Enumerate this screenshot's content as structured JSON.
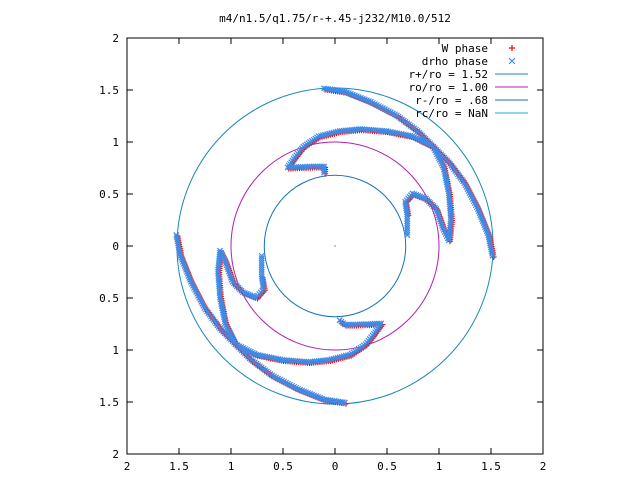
{
  "chart_data": {
    "type": "scatter",
    "title": "m4/n1.5/q1.75/r-+.45-j232/M10.0/512",
    "xlabel": "",
    "ylabel": "",
    "xlim": [
      -2,
      2
    ],
    "ylim": [
      -2,
      2
    ],
    "x_ticks": [
      -2,
      -1.5,
      -1,
      -0.5,
      0,
      0.5,
      1,
      1.5,
      2
    ],
    "y_ticks": [
      -2,
      -1.5,
      -1,
      -0.5,
      0,
      0.5,
      1,
      1.5,
      2
    ],
    "x_tick_labels": [
      "2",
      "1.5",
      "1",
      "0.5",
      "0",
      "0.5",
      "1",
      "1.5",
      "2"
    ],
    "y_tick_labels": [
      "2",
      "1.5",
      "1",
      "0.5",
      "0",
      "0.5",
      "1",
      "1.5",
      "2"
    ],
    "grid": false,
    "legend_position": "top-right",
    "legend": [
      {
        "label": "W phase",
        "symbol": "+",
        "color": "#ff0000"
      },
      {
        "label": "drho phase",
        "symbol": "x",
        "color": "#3d8be8"
      },
      {
        "label": "r+/ro = 1.52",
        "symbol": "line",
        "color": "#1a88b8"
      },
      {
        "label": "ro/ro = 1.00",
        "symbol": "line",
        "color": "#b020b0"
      },
      {
        "label": "r-/ro = .68",
        "symbol": "line",
        "color": "#1a70c0"
      },
      {
        "label": "rc/ro = NaN",
        "symbol": "line",
        "color": "#18a8d8"
      }
    ],
    "circles": [
      {
        "name": "r+/ro = 1.52",
        "r": 1.52,
        "color": "#1a88b8"
      },
      {
        "name": "ro/ro = 1.00",
        "r": 1.0,
        "color": "#b020b0"
      },
      {
        "name": "r-/ro = .68",
        "r": 0.68,
        "color": "#1a70c0"
      }
    ],
    "series": [
      {
        "name": "W phase",
        "marker": "+",
        "color": "#ff0000",
        "arms": [
          [
            [
              -0.1,
              1.51
            ],
            [
              0.1,
              1.48
            ],
            [
              0.35,
              1.38
            ],
            [
              0.6,
              1.25
            ],
            [
              0.8,
              1.1
            ],
            [
              0.95,
              0.95
            ],
            [
              1.05,
              0.75
            ],
            [
              1.1,
              0.5
            ],
            [
              1.12,
              0.25
            ],
            [
              1.1,
              0.05
            ],
            [
              1.05,
              0.15
            ],
            [
              0.98,
              0.35
            ],
            [
              0.88,
              0.45
            ],
            [
              0.75,
              0.5
            ],
            [
              0.68,
              0.42
            ],
            [
              0.7,
              0.3
            ]
          ],
          [
            [
              1.52,
              -0.1
            ],
            [
              1.48,
              0.1
            ],
            [
              1.38,
              0.35
            ],
            [
              1.25,
              0.6
            ],
            [
              1.1,
              0.8
            ],
            [
              0.95,
              0.95
            ],
            [
              0.75,
              1.05
            ],
            [
              0.5,
              1.1
            ],
            [
              0.25,
              1.12
            ],
            [
              0.05,
              1.1
            ],
            [
              -0.15,
              1.05
            ],
            [
              -0.3,
              0.95
            ],
            [
              -0.38,
              0.85
            ],
            [
              -0.45,
              0.75
            ],
            [
              -0.2,
              0.76
            ],
            [
              -0.1,
              0.76
            ],
            [
              -0.1,
              0.7
            ]
          ],
          [
            [
              0.1,
              -1.51
            ],
            [
              -0.1,
              -1.48
            ],
            [
              -0.35,
              -1.38
            ],
            [
              -0.6,
              -1.25
            ],
            [
              -0.8,
              -1.1
            ],
            [
              -0.95,
              -0.95
            ],
            [
              -1.05,
              -0.75
            ],
            [
              -1.1,
              -0.5
            ],
            [
              -1.12,
              -0.25
            ],
            [
              -1.1,
              -0.05
            ],
            [
              -1.05,
              -0.15
            ],
            [
              -0.98,
              -0.35
            ],
            [
              -0.88,
              -0.45
            ],
            [
              -0.75,
              -0.5
            ],
            [
              -0.68,
              -0.42
            ],
            [
              -0.7,
              -0.3
            ]
          ],
          [
            [
              -1.52,
              0.1
            ],
            [
              -1.48,
              -0.1
            ],
            [
              -1.38,
              -0.35
            ],
            [
              -1.25,
              -0.6
            ],
            [
              -1.1,
              -0.8
            ],
            [
              -0.95,
              -0.95
            ],
            [
              -0.75,
              -1.05
            ],
            [
              -0.5,
              -1.1
            ],
            [
              -0.25,
              -1.12
            ],
            [
              -0.05,
              -1.1
            ],
            [
              0.15,
              -1.05
            ],
            [
              0.3,
              -0.95
            ],
            [
              0.38,
              -0.85
            ],
            [
              0.45,
              -0.75
            ],
            [
              0.2,
              -0.76
            ],
            [
              0.1,
              -0.76
            ],
            [
              0.05,
              -0.72
            ]
          ]
        ]
      },
      {
        "name": "drho phase",
        "marker": "x",
        "color": "#3d8be8",
        "arms": [
          [
            [
              -0.1,
              1.51
            ],
            [
              0.1,
              1.48
            ],
            [
              0.35,
              1.38
            ],
            [
              0.6,
              1.25
            ],
            [
              0.8,
              1.1
            ],
            [
              0.95,
              0.95
            ],
            [
              1.05,
              0.75
            ],
            [
              1.1,
              0.5
            ],
            [
              1.12,
              0.25
            ],
            [
              1.1,
              0.05
            ],
            [
              1.05,
              0.15
            ],
            [
              0.98,
              0.35
            ],
            [
              0.88,
              0.45
            ],
            [
              0.75,
              0.5
            ],
            [
              0.68,
              0.42
            ],
            [
              0.7,
              0.3
            ],
            [
              0.7,
              0.1
            ]
          ],
          [
            [
              1.52,
              -0.1
            ],
            [
              1.48,
              0.1
            ],
            [
              1.38,
              0.35
            ],
            [
              1.25,
              0.6
            ],
            [
              1.1,
              0.8
            ],
            [
              0.95,
              0.95
            ],
            [
              0.75,
              1.05
            ],
            [
              0.5,
              1.1
            ],
            [
              0.25,
              1.12
            ],
            [
              0.05,
              1.1
            ],
            [
              -0.15,
              1.05
            ],
            [
              -0.3,
              0.95
            ],
            [
              -0.38,
              0.85
            ],
            [
              -0.45,
              0.75
            ],
            [
              -0.2,
              0.76
            ],
            [
              -0.1,
              0.76
            ],
            [
              -0.1,
              0.7
            ]
          ],
          [
            [
              0.1,
              -1.51
            ],
            [
              -0.1,
              -1.48
            ],
            [
              -0.35,
              -1.38
            ],
            [
              -0.6,
              -1.25
            ],
            [
              -0.8,
              -1.1
            ],
            [
              -0.95,
              -0.95
            ],
            [
              -1.05,
              -0.75
            ],
            [
              -1.1,
              -0.5
            ],
            [
              -1.12,
              -0.25
            ],
            [
              -1.1,
              -0.05
            ],
            [
              -1.05,
              -0.15
            ],
            [
              -0.98,
              -0.35
            ],
            [
              -0.88,
              -0.45
            ],
            [
              -0.75,
              -0.5
            ],
            [
              -0.68,
              -0.42
            ],
            [
              -0.7,
              -0.3
            ],
            [
              -0.7,
              -0.1
            ]
          ],
          [
            [
              -1.52,
              0.1
            ],
            [
              -1.48,
              -0.1
            ],
            [
              -1.38,
              -0.35
            ],
            [
              -1.25,
              -0.6
            ],
            [
              -1.1,
              -0.8
            ],
            [
              -0.95,
              -0.95
            ],
            [
              -0.75,
              -1.05
            ],
            [
              -0.5,
              -1.1
            ],
            [
              -0.25,
              -1.12
            ],
            [
              -0.05,
              -1.1
            ],
            [
              0.15,
              -1.05
            ],
            [
              0.3,
              -0.95
            ],
            [
              0.38,
              -0.85
            ],
            [
              0.45,
              -0.75
            ],
            [
              0.2,
              -0.76
            ],
            [
              0.1,
              -0.76
            ],
            [
              0.05,
              -0.72
            ]
          ]
        ]
      }
    ]
  }
}
